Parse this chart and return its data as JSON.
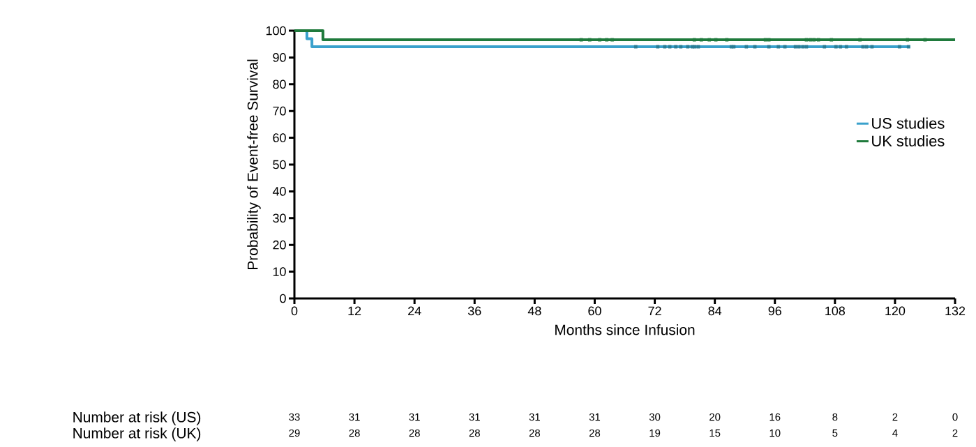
{
  "chart_data": {
    "type": "step",
    "xlabel": "Months since Infusion",
    "ylabel": "Probability of Event-free Survival",
    "xlim": [
      0,
      132
    ],
    "xticks": [
      0,
      12,
      24,
      36,
      48,
      60,
      72,
      84,
      96,
      108,
      120,
      132
    ],
    "ylim": [
      0,
      100
    ],
    "yticks": [
      0,
      10,
      20,
      30,
      40,
      50,
      60,
      70,
      80,
      90,
      100
    ],
    "grid": false,
    "legend": "right",
    "series": [
      {
        "name": "US studies",
        "color": "#3aa1cc",
        "x": [
          0,
          2.5,
          3.5,
          123
        ],
        "values": [
          100,
          97,
          94,
          94
        ]
      },
      {
        "name": "UK studies",
        "color": "#1f7a3c",
        "x": [
          0,
          5.7,
          132
        ],
        "values": [
          100,
          96.6,
          96.6
        ]
      },
      {
        "type": "scatter",
        "marker": "square",
        "color": "#2a7e96",
        "x": [
          68.2,
          72.6,
          74.0,
          75.0,
          76.2,
          77.2,
          78.6,
          79.5,
          80.0,
          80.7,
          87.3,
          87.8,
          90.3,
          92.0,
          94.8,
          96.7,
          98.0,
          100.1,
          100.8,
          101.6,
          102.3,
          105.9,
          108.2,
          109.1,
          110.3,
          113.6,
          114.3,
          115.4,
          120.9,
          122.7
        ],
        "values": [
          94,
          94,
          94,
          94,
          94,
          94,
          94,
          94,
          94,
          94,
          94,
          94,
          94,
          94,
          94,
          94,
          94,
          94,
          94,
          94,
          94,
          94,
          94,
          94,
          94,
          94,
          94,
          94,
          94,
          94
        ]
      },
      {
        "type": "scatter",
        "marker": "square",
        "color": "#1f7a3c",
        "x": [
          57.3,
          59.0,
          61.0,
          62.4,
          63.5,
          79.9,
          81.3,
          82.9,
          84.2,
          86.4,
          94.1,
          94.8,
          102.3,
          103.1,
          103.8,
          104.7,
          107.3,
          113.0,
          122.5,
          126.0
        ],
        "values": [
          96.6,
          96.6,
          96.6,
          96.6,
          96.6,
          96.6,
          96.6,
          96.6,
          96.6,
          96.6,
          96.6,
          96.6,
          96.6,
          96.6,
          96.6,
          96.6,
          96.6,
          96.6,
          96.6,
          96.6
        ]
      }
    ],
    "annotations": [
      "Number at risk (US)",
      "33",
      "31",
      "31",
      "31",
      "31",
      "31",
      "30",
      "20",
      "16",
      "8",
      "2",
      "0",
      "Number at risk (UK)",
      "29",
      "28",
      "28",
      "28",
      "28",
      "28",
      "19",
      "15",
      "10",
      "5",
      "4",
      "2"
    ]
  }
}
